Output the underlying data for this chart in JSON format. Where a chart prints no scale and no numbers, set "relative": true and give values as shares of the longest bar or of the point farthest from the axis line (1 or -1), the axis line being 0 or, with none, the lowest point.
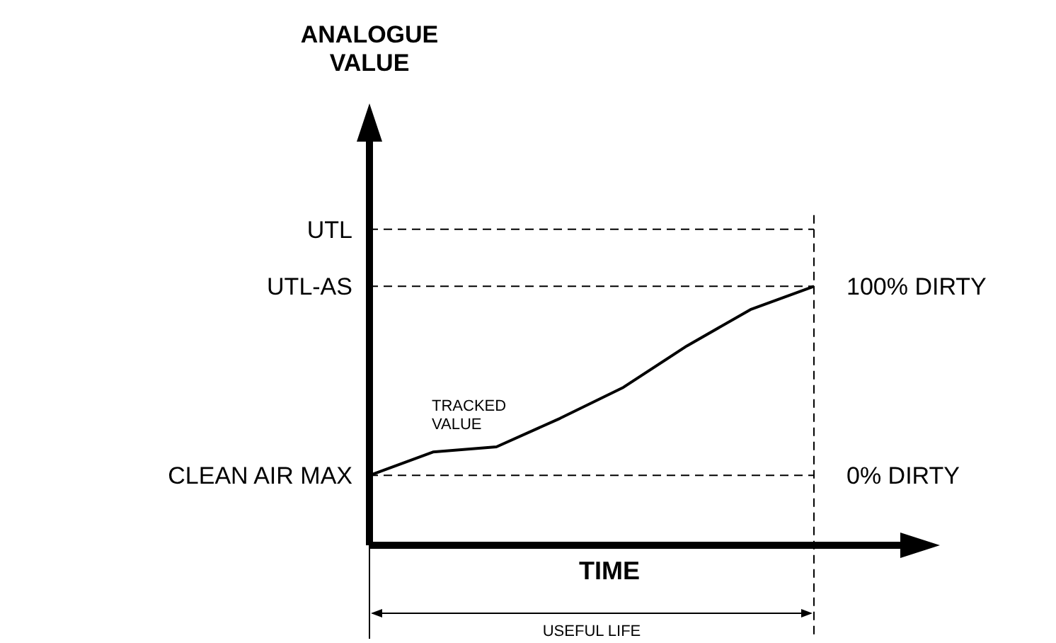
{
  "chart_data": {
    "type": "line",
    "relative": true,
    "xlabel": "TIME",
    "marker": "none",
    "line_style": "solid",
    "categories": [
      null,
      null,
      null,
      null,
      null,
      null,
      null,
      null
    ],
    "series": [
      {
        "color": "#000000",
        "values": [
          0.27,
          0.36,
          0.38,
          0.49,
          0.61,
          0.77,
          0.91,
          1.0
        ]
      }
    ],
    "ref_lines": [
      {
        "axis": "y",
        "value": 1.22,
        "label": "UTL",
        "line_style": "dashed",
        "color": "#000000"
      },
      {
        "axis": "y",
        "value": 1.0,
        "label": "UTL-AS",
        "line_style": "dashed",
        "color": "#000000"
      },
      {
        "axis": "y",
        "value": 0.27,
        "label": "CLEAN AIR MAX",
        "line_style": "dashed",
        "color": "#000000"
      }
    ],
    "annotations": [
      "ANALOGUE VALUE",
      "TRACKED VALUE",
      "100% DIRTY",
      "0% DIRTY",
      "USEFUL LIFE"
    ]
  }
}
